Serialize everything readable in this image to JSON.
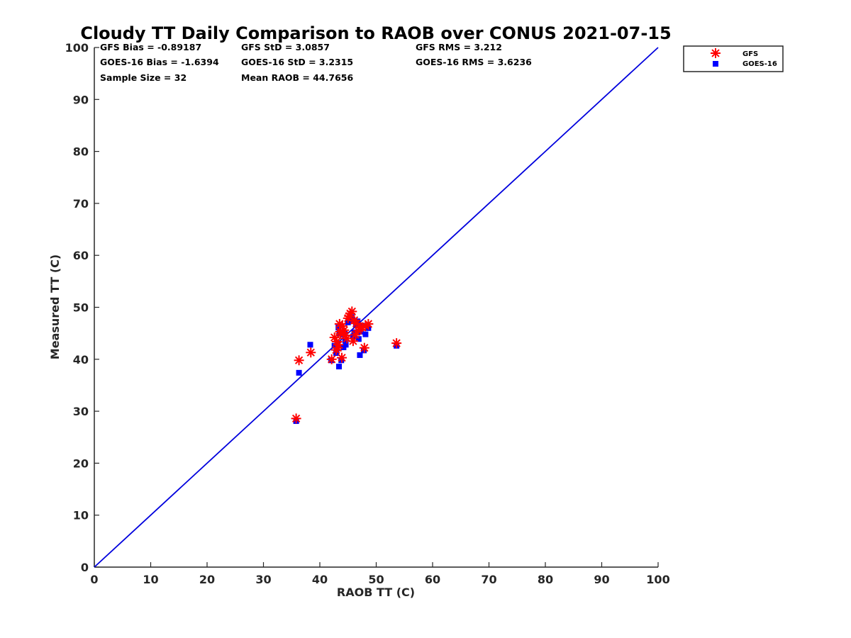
{
  "chart_data": {
    "type": "scatter",
    "title": "Cloudy TT Daily Comparison to RAOB over CONUS 2021-07-15",
    "xlabel": "RAOB TT (C)",
    "ylabel": "Measured TT (C)",
    "xlim": [
      0,
      100
    ],
    "ylim": [
      0,
      100
    ],
    "xticks": [
      "0",
      "10",
      "20",
      "30",
      "40",
      "50",
      "60",
      "70",
      "80",
      "90",
      "100"
    ],
    "yticks": [
      "0",
      "10",
      "20",
      "30",
      "40",
      "50",
      "60",
      "70",
      "80",
      "90",
      "100"
    ],
    "grid": false,
    "legend_position": "top-right outside plot",
    "reference_line": {
      "x": [
        0,
        100
      ],
      "y": [
        0,
        100
      ],
      "color": "#0000dd"
    },
    "stats": {
      "gfs_bias": "GFS Bias = -0.89187",
      "goes_bias": "GOES-16 Bias = -1.6394",
      "sample_size": "Sample Size = 32",
      "gfs_std": "GFS StD = 3.0857",
      "goes_std": "GOES-16 StD = 3.2315",
      "mean_raob": "Mean RAOB = 44.7656",
      "gfs_rms": "GFS RMS = 3.212",
      "goes_rms": "GOES-16 RMS = 3.6236"
    },
    "series": [
      {
        "name": "GFS",
        "marker": "asterisk",
        "color": "#ff0000",
        "x": [
          35.8,
          36.3,
          38.4,
          42.1,
          42.6,
          43.0,
          43.2,
          43.5,
          43.6,
          43.9,
          44.0,
          44.3,
          44.5,
          45.2,
          45.7,
          45.9,
          46.1,
          46.5,
          47.2,
          47.9,
          48.1,
          48.6,
          53.6,
          42.9,
          43.7,
          45.0,
          46.8,
          47.5,
          44.8,
          43.3,
          45.4,
          46.3
        ],
        "y": [
          28.6,
          39.8,
          41.3,
          40.0,
          44.2,
          43.4,
          42.2,
          46.8,
          45.3,
          40.3,
          46.4,
          45.6,
          44.6,
          48.3,
          49.2,
          43.5,
          47.5,
          46.9,
          46.2,
          42.2,
          46.4,
          46.8,
          43.1,
          41.8,
          44.9,
          47.9,
          45.5,
          46.1,
          44.0,
          42.8,
          48.8,
          44.7
        ]
      },
      {
        "name": "GOES-16",
        "marker": "square",
        "color": "#0000ff",
        "x": [
          35.8,
          36.3,
          38.3,
          42.0,
          42.6,
          42.9,
          43.1,
          43.3,
          43.4,
          43.8,
          44.0,
          44.2,
          44.5,
          45.0,
          45.6,
          45.9,
          46.1,
          46.4,
          46.9,
          47.1,
          47.4,
          47.8,
          48.1,
          48.6,
          53.6,
          43.5,
          44.4,
          46.7,
          43.0,
          44.6,
          45.8,
          47.3
        ],
        "y": [
          28.1,
          37.4,
          42.8,
          39.8,
          42.6,
          41.2,
          43.0,
          46.1,
          38.6,
          39.8,
          44.8,
          42.3,
          43.6,
          47.1,
          48.1,
          44.4,
          45.2,
          46.6,
          43.9,
          40.8,
          46.5,
          41.7,
          44.8,
          46.0,
          42.6,
          45.0,
          44.9,
          47.3,
          42.0,
          42.8,
          47.6,
          45.3
        ]
      }
    ]
  }
}
